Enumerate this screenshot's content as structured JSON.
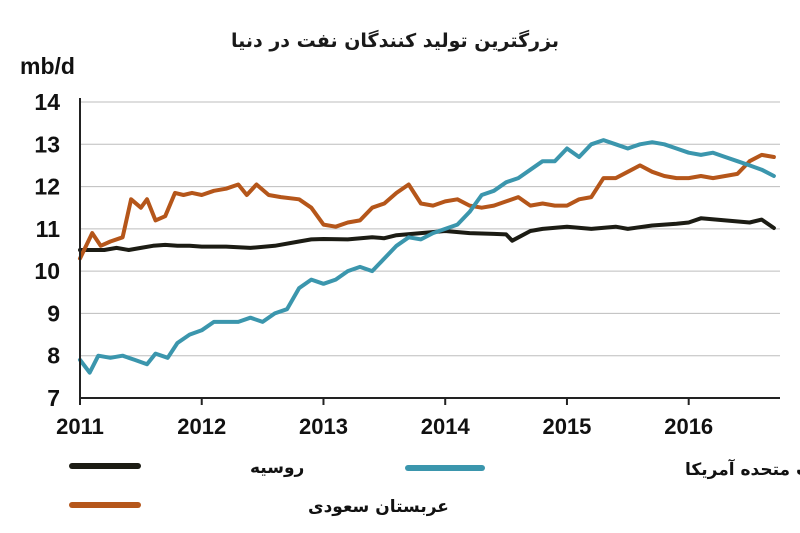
{
  "chart_data": {
    "type": "line",
    "title": "بزرگترین تولید کنندگان نفت در دنیا",
    "ylabel": "mb/d",
    "ylim": [
      7,
      14
    ],
    "yticks": [
      7,
      8,
      9,
      10,
      11,
      12,
      13,
      14
    ],
    "xlim": [
      2011,
      2016.75
    ],
    "xticks": [
      2011,
      2012,
      2013,
      2014,
      2015,
      2016
    ],
    "grid": true,
    "legend": "bottom",
    "series": [
      {
        "name": "روسیه",
        "color": "#1c1c14",
        "x": [
          2011.0,
          2011.1,
          2011.2,
          2011.3,
          2011.4,
          2011.5,
          2011.6,
          2011.7,
          2011.8,
          2011.9,
          2012.0,
          2012.2,
          2012.4,
          2012.6,
          2012.8,
          2012.9,
          2013.0,
          2013.2,
          2013.4,
          2013.5,
          2013.6,
          2013.8,
          2014.0,
          2014.2,
          2014.4,
          2014.5,
          2014.55,
          2014.7,
          2014.8,
          2015.0,
          2015.2,
          2015.4,
          2015.5,
          2015.7,
          2015.9,
          2016.0,
          2016.1,
          2016.3,
          2016.5,
          2016.6,
          2016.7
        ],
        "y": [
          10.5,
          10.5,
          10.5,
          10.55,
          10.5,
          10.55,
          10.6,
          10.62,
          10.6,
          10.6,
          10.58,
          10.58,
          10.55,
          10.6,
          10.7,
          10.75,
          10.76,
          10.75,
          10.8,
          10.78,
          10.85,
          10.9,
          10.95,
          10.9,
          10.88,
          10.87,
          10.72,
          10.95,
          11.0,
          11.05,
          11.0,
          11.05,
          11.0,
          11.08,
          11.12,
          11.15,
          11.25,
          11.2,
          11.15,
          11.22,
          11.02
        ]
      },
      {
        "name": "عربستان سعودی",
        "color": "#b5561a",
        "x": [
          2011.0,
          2011.1,
          2011.17,
          2011.25,
          2011.35,
          2011.42,
          2011.5,
          2011.55,
          2011.62,
          2011.7,
          2011.78,
          2011.85,
          2011.92,
          2012.0,
          2012.1,
          2012.2,
          2012.3,
          2012.37,
          2012.45,
          2012.55,
          2012.65,
          2012.8,
          2012.9,
          2013.0,
          2013.1,
          2013.2,
          2013.3,
          2013.4,
          2013.5,
          2013.6,
          2013.7,
          2013.8,
          2013.9,
          2014.0,
          2014.1,
          2014.2,
          2014.3,
          2014.4,
          2014.5,
          2014.6,
          2014.7,
          2014.8,
          2014.9,
          2015.0,
          2015.1,
          2015.2,
          2015.3,
          2015.4,
          2015.5,
          2015.6,
          2015.7,
          2015.8,
          2015.9,
          2016.0,
          2016.1,
          2016.2,
          2016.3,
          2016.4,
          2016.5,
          2016.6,
          2016.7
        ],
        "y": [
          10.3,
          10.9,
          10.6,
          10.7,
          10.8,
          11.7,
          11.5,
          11.7,
          11.2,
          11.3,
          11.85,
          11.8,
          11.85,
          11.8,
          11.9,
          11.95,
          12.05,
          11.8,
          12.05,
          11.8,
          11.75,
          11.7,
          11.5,
          11.1,
          11.05,
          11.15,
          11.2,
          11.5,
          11.6,
          11.85,
          12.05,
          11.6,
          11.55,
          11.65,
          11.7,
          11.55,
          11.5,
          11.55,
          11.65,
          11.75,
          11.55,
          11.6,
          11.55,
          11.55,
          11.7,
          11.75,
          12.2,
          12.2,
          12.35,
          12.5,
          12.35,
          12.25,
          12.2,
          12.2,
          12.25,
          12.2,
          12.25,
          12.3,
          12.6,
          12.75,
          12.7
        ]
      },
      {
        "name": "ایالات متحده آمریکا",
        "color": "#3b96ad",
        "x": [
          2011.0,
          2011.08,
          2011.15,
          2011.25,
          2011.35,
          2011.45,
          2011.55,
          2011.62,
          2011.72,
          2011.8,
          2011.9,
          2012.0,
          2012.1,
          2012.2,
          2012.3,
          2012.4,
          2012.5,
          2012.6,
          2012.7,
          2012.8,
          2012.9,
          2013.0,
          2013.1,
          2013.2,
          2013.3,
          2013.4,
          2013.5,
          2013.6,
          2013.7,
          2013.8,
          2013.9,
          2014.0,
          2014.1,
          2014.2,
          2014.3,
          2014.4,
          2014.5,
          2014.6,
          2014.7,
          2014.8,
          2014.9,
          2015.0,
          2015.1,
          2015.2,
          2015.3,
          2015.4,
          2015.5,
          2015.6,
          2015.7,
          2015.8,
          2015.9,
          2016.0,
          2016.1,
          2016.2,
          2016.3,
          2016.4,
          2016.5,
          2016.6,
          2016.7
        ],
        "y": [
          7.9,
          7.6,
          8.0,
          7.95,
          8.0,
          7.9,
          7.8,
          8.05,
          7.95,
          8.3,
          8.5,
          8.6,
          8.8,
          8.8,
          8.8,
          8.9,
          8.8,
          9.0,
          9.1,
          9.6,
          9.8,
          9.7,
          9.8,
          10.0,
          10.1,
          10.0,
          10.3,
          10.6,
          10.8,
          10.75,
          10.9,
          11.0,
          11.1,
          11.4,
          11.8,
          11.9,
          12.1,
          12.2,
          12.4,
          12.6,
          12.6,
          12.9,
          12.7,
          13.0,
          13.1,
          13.0,
          12.9,
          13.0,
          13.05,
          13.0,
          12.9,
          12.8,
          12.75,
          12.8,
          12.7,
          12.6,
          12.5,
          12.4,
          12.25
        ]
      }
    ]
  }
}
